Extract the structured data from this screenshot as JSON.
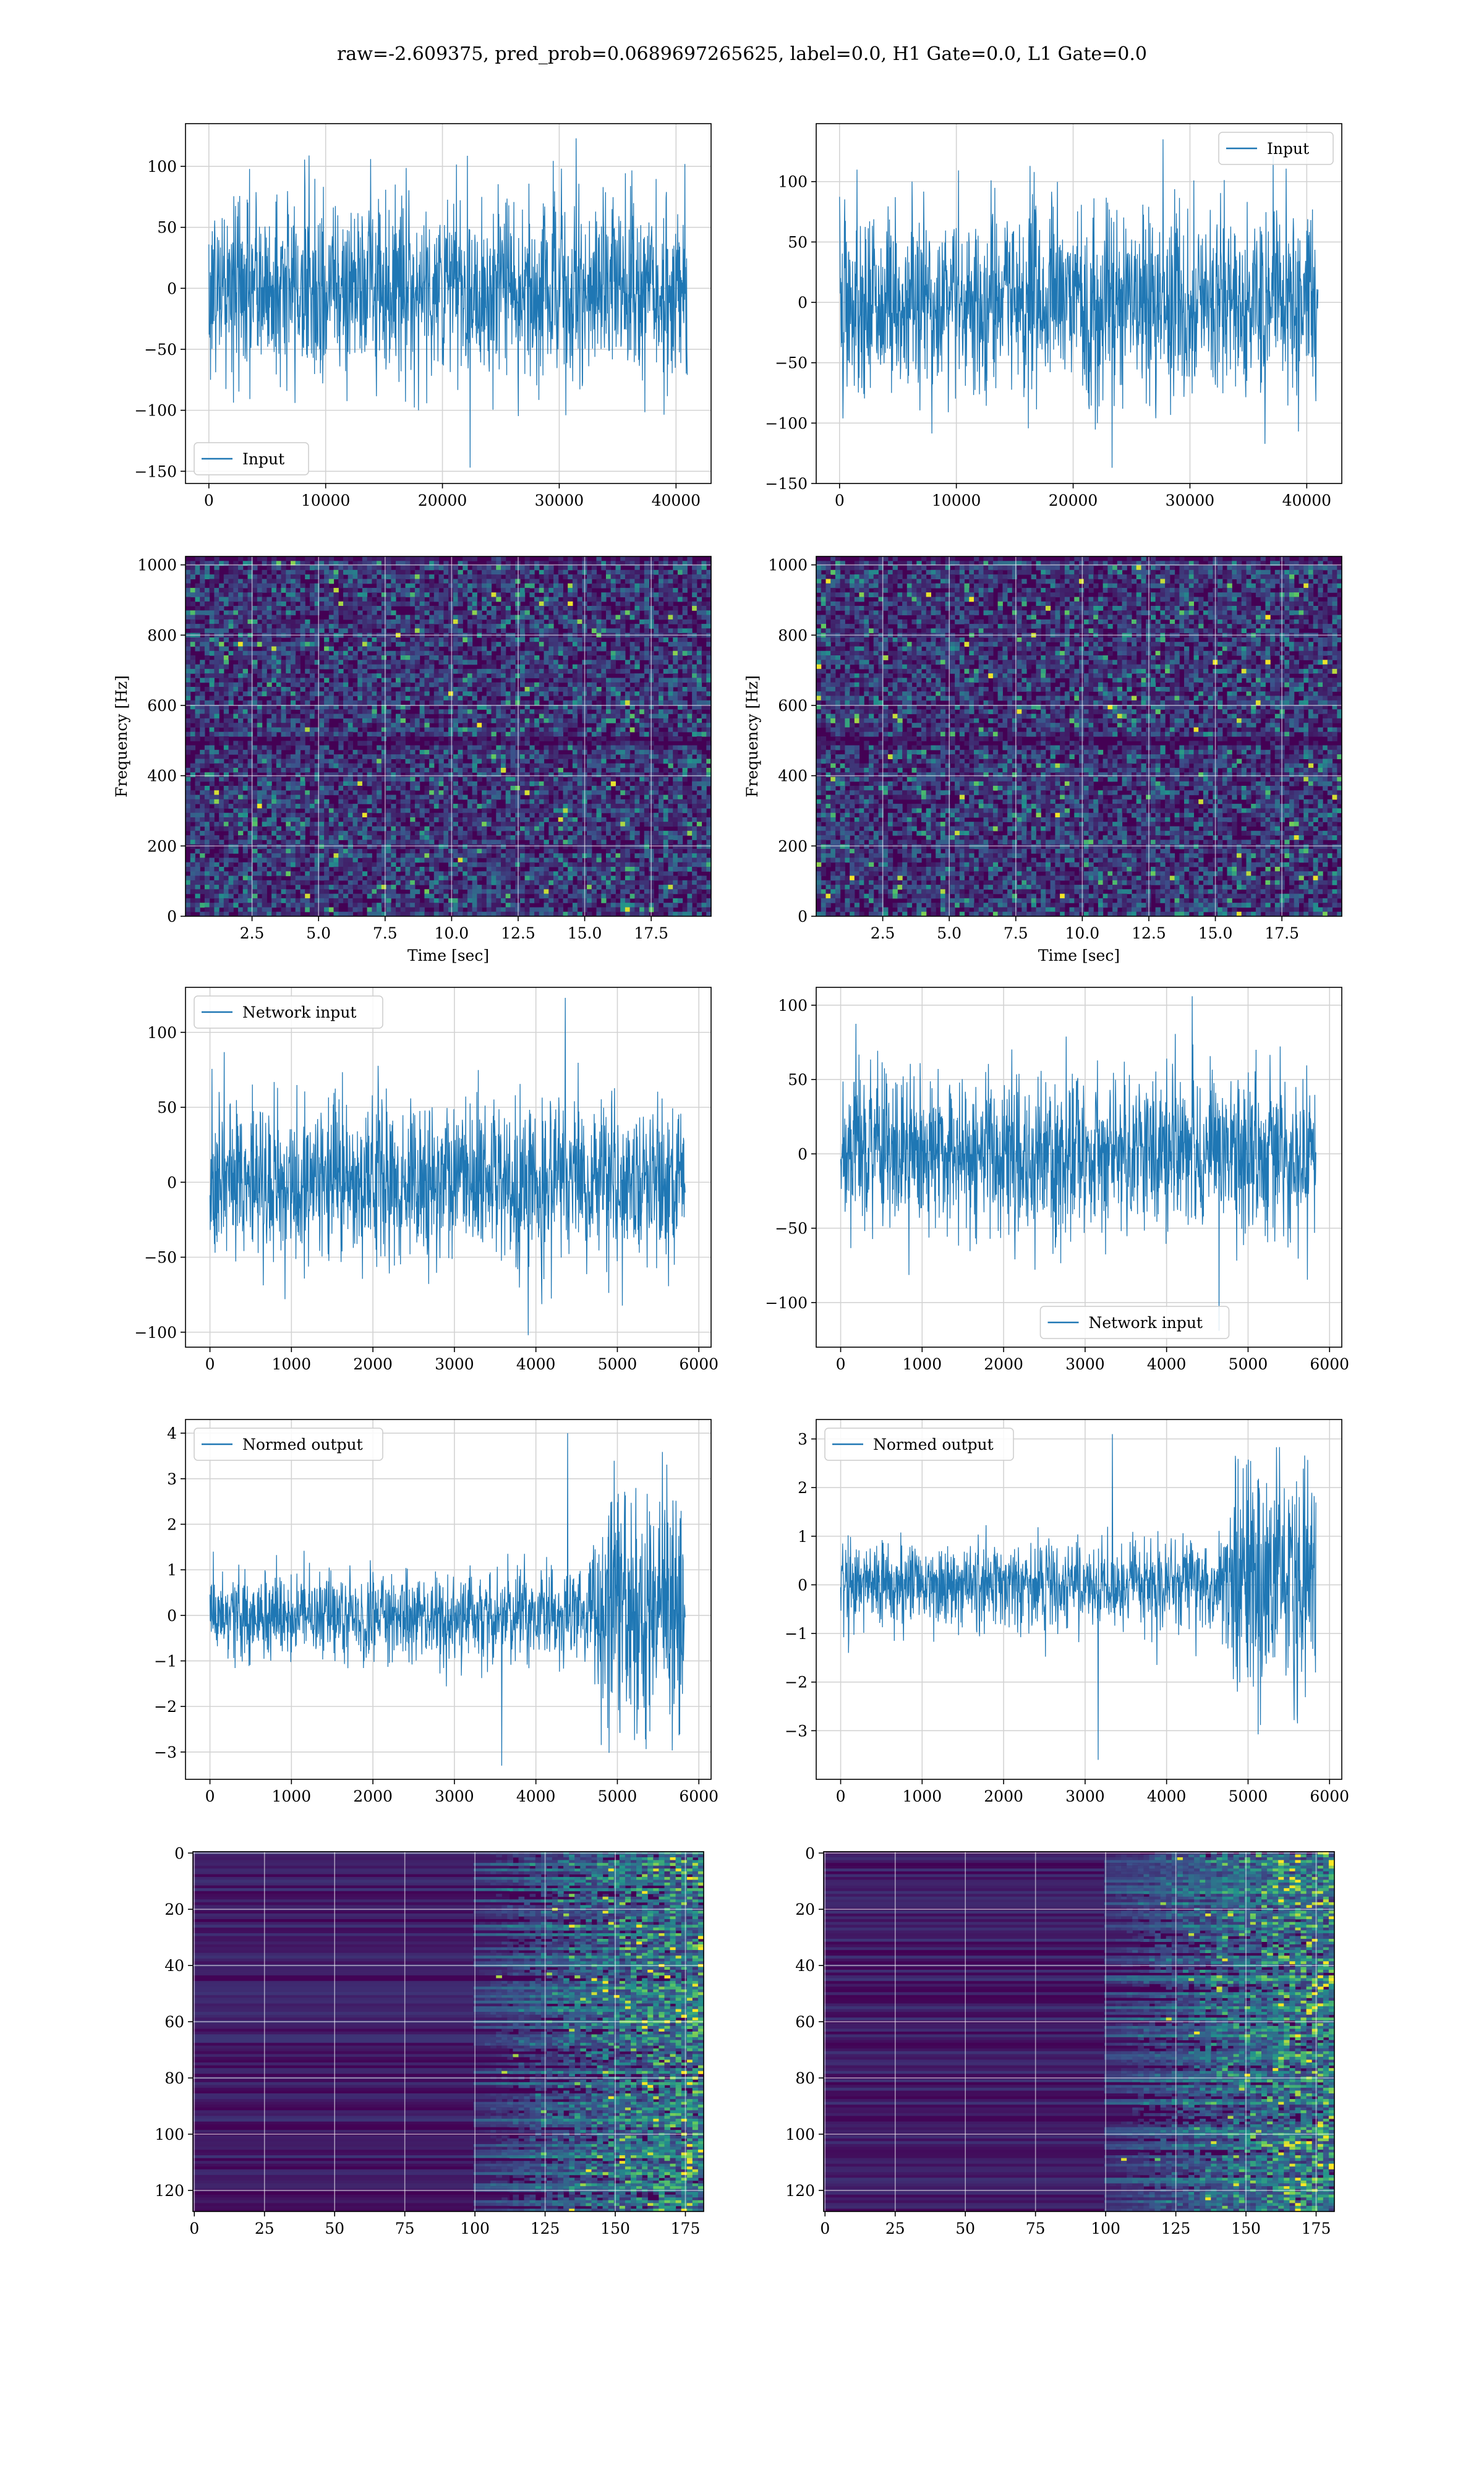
{
  "title": "raw=-2.609375, pred_prob=0.0689697265625, label=0.0, H1 Gate=0.0, L1 Gate=0.0",
  "colors": {
    "line": "#1f77b4",
    "grid": "#d3d3d3",
    "viridis_low": "#440154",
    "viridis_mid": "#21918c",
    "viridis_high": "#fde725"
  },
  "chart_data": [
    {
      "id": "input-h1",
      "type": "line",
      "title": "",
      "xlabel": "",
      "ylabel": "",
      "xlim": [
        -2000,
        43000
      ],
      "ylim": [
        -160,
        135
      ],
      "xticks": [
        0,
        10000,
        20000,
        30000,
        40000
      ],
      "yticks": [
        -150,
        -100,
        -50,
        0,
        50,
        100
      ],
      "legend": "lower-left",
      "grid": true,
      "series": [
        {
          "name": "Input",
          "n_samples": 40960,
          "x_range": [
            0,
            40960
          ],
          "envelope": [
            -50,
            50
          ],
          "peak_range": [
            -147,
            123
          ]
        }
      ]
    },
    {
      "id": "input-l1",
      "type": "line",
      "title": "",
      "xlabel": "",
      "ylabel": "",
      "xlim": [
        -2000,
        43000
      ],
      "ylim": [
        -150,
        148
      ],
      "xticks": [
        0,
        10000,
        20000,
        30000,
        40000
      ],
      "yticks": [
        -150,
        -100,
        -50,
        0,
        50,
        100
      ],
      "legend": "upper-right",
      "grid": true,
      "series": [
        {
          "name": "Input",
          "n_samples": 40960,
          "x_range": [
            0,
            40960
          ],
          "envelope": [
            -50,
            50
          ],
          "peak_range": [
            -137,
            135
          ]
        }
      ]
    },
    {
      "id": "spectrogram-h1",
      "type": "heatmap",
      "title": "",
      "xlabel": "Time [sec]",
      "ylabel": "Frequency [Hz]",
      "xlim": [
        0,
        19.75
      ],
      "ylim": [
        0,
        1024
      ],
      "xticks": [
        2.5,
        5.0,
        7.5,
        10.0,
        12.5,
        15.0,
        17.5
      ],
      "yticks": [
        0,
        200,
        400,
        600,
        800,
        1000
      ],
      "colormap": "viridis",
      "grid": true
    },
    {
      "id": "spectrogram-l1",
      "type": "heatmap",
      "title": "",
      "xlabel": "Time [sec]",
      "ylabel": "Frequency [Hz]",
      "xlim": [
        0,
        19.75
      ],
      "ylim": [
        0,
        1024
      ],
      "xticks": [
        2.5,
        5.0,
        7.5,
        10.0,
        12.5,
        15.0,
        17.5
      ],
      "yticks": [
        0,
        200,
        400,
        600,
        800,
        1000
      ],
      "colormap": "viridis",
      "grid": true
    },
    {
      "id": "network-input-h1",
      "type": "line",
      "title": "",
      "xlabel": "",
      "ylabel": "",
      "xlim": [
        -300,
        6150
      ],
      "ylim": [
        -110,
        130
      ],
      "xticks": [
        0,
        1000,
        2000,
        3000,
        4000,
        5000,
        6000
      ],
      "yticks": [
        -100,
        -50,
        0,
        50,
        100
      ],
      "legend": "upper-left",
      "grid": true,
      "series": [
        {
          "name": "Network input",
          "n_samples": 5832,
          "x_range": [
            0,
            5832
          ],
          "envelope": [
            -35,
            35
          ],
          "peak_range": [
            -102,
            123
          ]
        }
      ]
    },
    {
      "id": "network-input-l1",
      "type": "line",
      "title": "",
      "xlabel": "",
      "ylabel": "",
      "xlim": [
        -300,
        6150
      ],
      "ylim": [
        -130,
        112
      ],
      "xticks": [
        0,
        1000,
        2000,
        3000,
        4000,
        5000,
        6000
      ],
      "yticks": [
        -100,
        -50,
        0,
        50,
        100
      ],
      "legend": "lower-center",
      "grid": true,
      "series": [
        {
          "name": "Network input",
          "n_samples": 5832,
          "x_range": [
            0,
            5832
          ],
          "envelope": [
            -35,
            35
          ],
          "peak_range": [
            -119,
            106
          ]
        }
      ]
    },
    {
      "id": "normed-output-h1",
      "type": "line",
      "title": "",
      "xlabel": "",
      "ylabel": "",
      "xlim": [
        -300,
        6150
      ],
      "ylim": [
        -3.6,
        4.3
      ],
      "xticks": [
        0,
        1000,
        2000,
        3000,
        4000,
        5000,
        6000
      ],
      "yticks": [
        -3,
        -2,
        -1,
        0,
        1,
        2,
        3,
        4
      ],
      "legend": "upper-left",
      "grid": true,
      "series": [
        {
          "name": "Normed output",
          "n_samples": 5832,
          "x_range": [
            0,
            5832
          ],
          "envelope": [
            -0.6,
            0.6
          ],
          "burst_start": 4650,
          "burst_envelope": [
            -1.8,
            1.8
          ],
          "peak_range": [
            -3.3,
            4.0
          ]
        }
      ]
    },
    {
      "id": "normed-output-l1",
      "type": "line",
      "title": "",
      "xlabel": "",
      "ylabel": "",
      "xlim": [
        -300,
        6150
      ],
      "ylim": [
        -4.0,
        3.4
      ],
      "xticks": [
        0,
        1000,
        2000,
        3000,
        4000,
        5000,
        6000
      ],
      "yticks": [
        -3,
        -2,
        -1,
        0,
        1,
        2,
        3
      ],
      "legend": "upper-left",
      "grid": true,
      "series": [
        {
          "name": "Normed output",
          "n_samples": 5832,
          "x_range": [
            0,
            5832
          ],
          "envelope": [
            -0.6,
            0.6
          ],
          "burst_start": 4650,
          "burst_envelope": [
            -1.8,
            1.8
          ],
          "peak_range": [
            -3.6,
            3.1
          ]
        }
      ]
    },
    {
      "id": "feature-map-h1",
      "type": "heatmap",
      "title": "",
      "xlabel": "",
      "ylabel": "",
      "xlim": [
        -0.5,
        181.5
      ],
      "ylim": [
        127.5,
        -0.5
      ],
      "xticks": [
        0,
        25,
        50,
        75,
        100,
        125,
        150,
        175
      ],
      "yticks": [
        0,
        20,
        40,
        60,
        80,
        100,
        120
      ],
      "colormap": "viridis",
      "grid": true
    },
    {
      "id": "feature-map-l1",
      "type": "heatmap",
      "title": "",
      "xlabel": "",
      "ylabel": "",
      "xlim": [
        -0.5,
        181.5
      ],
      "ylim": [
        127.5,
        -0.5
      ],
      "xticks": [
        0,
        25,
        50,
        75,
        100,
        125,
        150,
        175
      ],
      "yticks": [
        0,
        20,
        40,
        60,
        80,
        100,
        120
      ],
      "colormap": "viridis",
      "grid": true
    }
  ]
}
